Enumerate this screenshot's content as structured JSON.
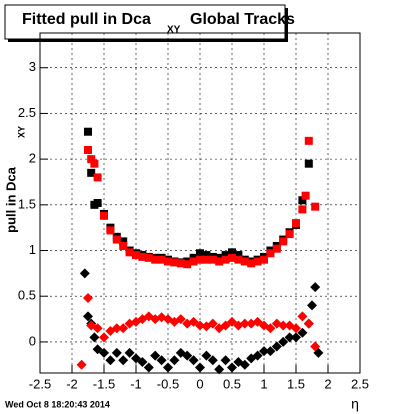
{
  "chart_data": {
    "type": "scatter",
    "title": "Fitted pull in Dca",
    "title_subscript": "XY",
    "title_suffix": "Global Tracks",
    "y_label": "pull in Dca",
    "y_label_subscript": "XY",
    "x_label": "η",
    "footer": "Wed Oct  8 18:20:43 2014",
    "xlim": [
      -2.5,
      2.5
    ],
    "ylim": [
      -0.34,
      3.38
    ],
    "xticks": [
      -2.5,
      -2,
      -1.5,
      -1,
      -0.5,
      0,
      0.5,
      1,
      1.5,
      2,
      2.5
    ],
    "yticks": [
      0,
      0.5,
      1,
      1.5,
      2,
      2.5,
      3
    ],
    "grid": true,
    "series": [
      {
        "color": "#000000",
        "marker": "square",
        "x": [
          -1.75,
          -1.7,
          -1.65,
          -1.6,
          -1.5,
          -1.4,
          -1.3,
          -1.2,
          -1.1,
          -1.0,
          -0.9,
          -0.8,
          -0.7,
          -0.6,
          -0.5,
          -0.4,
          -0.3,
          -0.2,
          -0.1,
          0,
          0.1,
          0.2,
          0.3,
          0.4,
          0.5,
          0.6,
          0.7,
          0.8,
          0.9,
          1.0,
          1.1,
          1.2,
          1.3,
          1.4,
          1.5,
          1.6,
          1.7
        ],
        "values": [
          2.3,
          1.85,
          1.5,
          1.52,
          1.4,
          1.25,
          1.15,
          1.1,
          1.0,
          0.97,
          0.95,
          0.93,
          0.92,
          0.92,
          0.9,
          0.88,
          0.87,
          0.88,
          0.92,
          0.97,
          0.95,
          0.93,
          0.92,
          0.95,
          0.98,
          0.95,
          0.9,
          0.88,
          0.9,
          0.93,
          1.0,
          1.05,
          1.12,
          1.2,
          1.28,
          1.55,
          1.95
        ]
      },
      {
        "color": "#ff0000",
        "marker": "square",
        "x": [
          -1.75,
          -1.7,
          -1.65,
          -1.6,
          -1.5,
          -1.4,
          -1.3,
          -1.2,
          -1.1,
          -1.0,
          -0.9,
          -0.8,
          -0.7,
          -0.6,
          -0.5,
          -0.4,
          -0.3,
          -0.2,
          -0.1,
          0,
          0.1,
          0.2,
          0.3,
          0.4,
          0.5,
          0.6,
          0.7,
          0.8,
          0.9,
          1.0,
          1.1,
          1.2,
          1.3,
          1.4,
          1.5,
          1.6,
          1.65,
          1.7,
          1.8
        ],
        "values": [
          2.1,
          2.0,
          1.95,
          1.8,
          1.38,
          1.22,
          1.12,
          1.05,
          0.98,
          0.95,
          0.93,
          0.92,
          0.9,
          0.9,
          0.88,
          0.87,
          0.86,
          0.85,
          0.88,
          0.9,
          0.9,
          0.9,
          0.88,
          0.9,
          0.92,
          0.9,
          0.88,
          0.86,
          0.88,
          0.9,
          0.97,
          1.02,
          1.1,
          1.18,
          1.3,
          1.45,
          1.6,
          2.2,
          1.48
        ]
      },
      {
        "color": "#000000",
        "marker": "diamond",
        "x": [
          -1.8,
          -1.75,
          -1.7,
          -1.65,
          -1.6,
          -1.5,
          -1.4,
          -1.3,
          -1.2,
          -1.1,
          -1.0,
          -0.9,
          -0.8,
          -0.7,
          -0.6,
          -0.5,
          -0.4,
          -0.3,
          -0.2,
          -0.1,
          0,
          0.1,
          0.2,
          0.3,
          0.4,
          0.5,
          0.6,
          0.7,
          0.8,
          0.9,
          1.0,
          1.1,
          1.2,
          1.3,
          1.4,
          1.5,
          1.6,
          1.7,
          1.75,
          1.8,
          1.85
        ],
        "values": [
          0.75,
          0.28,
          0.2,
          0.05,
          -0.08,
          -0.12,
          -0.2,
          -0.12,
          -0.2,
          -0.12,
          -0.18,
          -0.22,
          -0.28,
          -0.15,
          -0.2,
          -0.28,
          -0.2,
          -0.12,
          -0.15,
          -0.2,
          -0.28,
          -0.15,
          -0.2,
          -0.3,
          -0.2,
          -0.28,
          -0.22,
          -0.25,
          -0.18,
          -0.15,
          -0.1,
          -0.1,
          -0.05,
          0,
          0.05,
          0.05,
          0.1,
          0.2,
          0.4,
          0.6,
          -0.12
        ]
      },
      {
        "color": "#ff0000",
        "marker": "diamond",
        "x": [
          -1.85,
          -1.75,
          -1.7,
          -1.6,
          -1.5,
          -1.4,
          -1.3,
          -1.2,
          -1.1,
          -1.0,
          -0.9,
          -0.8,
          -0.7,
          -0.6,
          -0.5,
          -0.4,
          -0.3,
          -0.2,
          -0.1,
          0,
          0.1,
          0.2,
          0.3,
          0.4,
          0.5,
          0.6,
          0.7,
          0.8,
          0.9,
          1.0,
          1.1,
          1.2,
          1.3,
          1.4,
          1.5,
          1.6,
          1.7,
          1.8
        ],
        "values": [
          -0.25,
          0.48,
          0.18,
          0.15,
          0.05,
          0.12,
          0.15,
          0.15,
          0.2,
          0.22,
          0.25,
          0.28,
          0.25,
          0.27,
          0.25,
          0.22,
          0.25,
          0.2,
          0.22,
          0.18,
          0.17,
          0.2,
          0.15,
          0.18,
          0.22,
          0.18,
          0.2,
          0.2,
          0.22,
          0.18,
          0.15,
          0.2,
          0.18,
          0.18,
          0.15,
          0.28,
          0.2,
          -0.05
        ]
      }
    ]
  }
}
